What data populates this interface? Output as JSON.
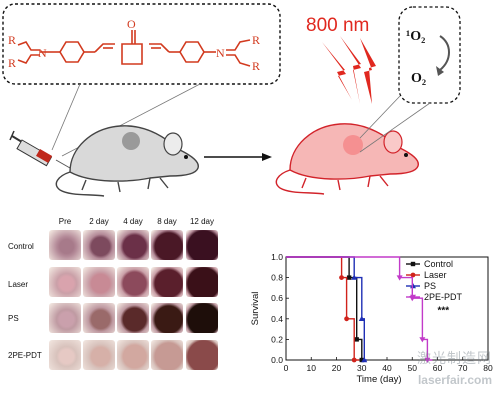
{
  "figure": {
    "laser_label": "800 nm",
    "singlet_oxygen": "¹O₂",
    "oxygen": "O₂",
    "molecule_atoms": {
      "r1": "R",
      "r2": "R",
      "r3": "R",
      "r4": "R",
      "n1": "N",
      "n2": "N",
      "o": "O"
    }
  },
  "photo_grid": {
    "columns": [
      "Pre",
      "2 day",
      "4 day",
      "8 day",
      "12 day"
    ],
    "rows": [
      "Control",
      "Laser",
      "PS",
      "2PE-PDT"
    ]
  },
  "chart_data": {
    "type": "line",
    "style": "step (Kaplan-Meier)",
    "xlabel": "Time (day)",
    "ylabel": "Survival",
    "xlim": [
      0,
      80
    ],
    "ylim": [
      0.0,
      1.0
    ],
    "xticks": [
      0,
      10,
      20,
      30,
      40,
      50,
      60,
      70,
      80
    ],
    "yticks": [
      0.0,
      0.2,
      0.4,
      0.6,
      0.8,
      1.0
    ],
    "legend_position": "top-right",
    "annotation": "***",
    "series": [
      {
        "name": "Control",
        "color": "#111111",
        "marker": "square",
        "x": [
          0,
          25,
          25,
          28,
          28,
          30,
          30,
          31,
          31
        ],
        "y": [
          1.0,
          1.0,
          0.8,
          0.8,
          0.2,
          0.2,
          0.0,
          0.0,
          0.0
        ]
      },
      {
        "name": "Laser",
        "color": "#d0231c",
        "marker": "circle",
        "x": [
          0,
          22,
          22,
          24,
          24,
          27,
          27,
          29
        ],
        "y": [
          1.0,
          1.0,
          0.8,
          0.8,
          0.4,
          0.4,
          0.0,
          0.0
        ]
      },
      {
        "name": "PS",
        "color": "#1f2fb5",
        "marker": "triangle-up",
        "x": [
          0,
          27,
          27,
          30,
          30,
          31,
          31,
          32
        ],
        "y": [
          1.0,
          1.0,
          0.8,
          0.8,
          0.4,
          0.4,
          0.0,
          0.0
        ]
      },
      {
        "name": "2PE-PDT",
        "color": "#c23ac9",
        "marker": "triangle-down",
        "x": [
          0,
          45,
          45,
          50,
          50,
          54,
          54,
          56,
          56,
          58
        ],
        "y": [
          1.0,
          1.0,
          0.8,
          0.8,
          0.6,
          0.6,
          0.2,
          0.2,
          0.0,
          0.0
        ]
      }
    ]
  },
  "watermark": {
    "chinese": "激光制造网",
    "url": "laserfair.com"
  }
}
